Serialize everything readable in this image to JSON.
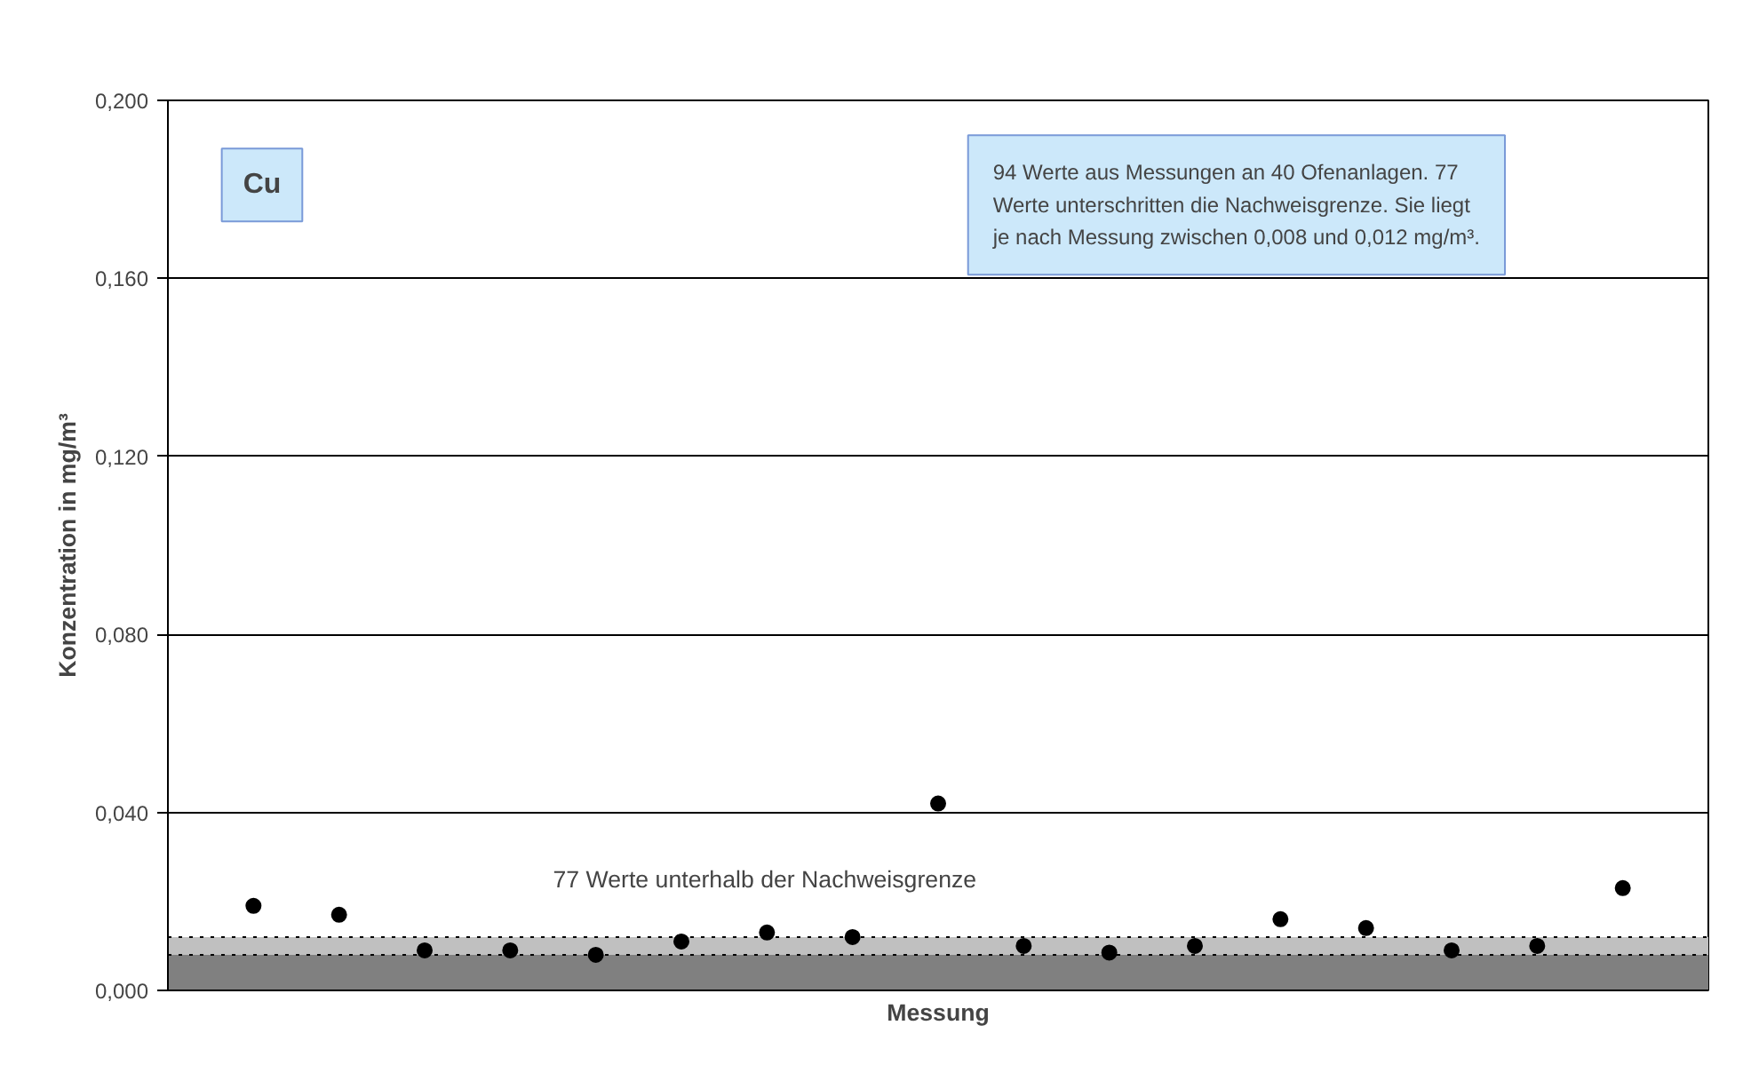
{
  "chart_data": {
    "type": "scatter",
    "xlabel": "Messung",
    "ylabel": "Konzentration in mg/m³",
    "categories": [
      null,
      null,
      null,
      null,
      null,
      null,
      null,
      null,
      null,
      null,
      null,
      null,
      null,
      null,
      null,
      null,
      null
    ],
    "series": [
      {
        "color": "#000000",
        "values": [
          0.019,
          0.017,
          0.009,
          0.009,
          0.008,
          0.011,
          0.013,
          0.012,
          0.042,
          0.01,
          0.0085,
          0.01,
          0.016,
          0.014,
          0.009,
          0.01,
          0.023
        ]
      }
    ],
    "marker": "circle",
    "ylim": [
      0,
      0.2
    ],
    "yticks": [
      {
        "value": 0,
        "label": "0,000"
      },
      {
        "value": 0.04,
        "label": "0,040"
      },
      {
        "value": 0.08,
        "label": "0,080"
      },
      {
        "value": 0.12,
        "label": "0,120"
      },
      {
        "value": 0.16,
        "label": "0,160"
      },
      {
        "value": 0.2,
        "label": "0,200"
      }
    ],
    "grid": "y",
    "tick_labels": "y",
    "bands": [
      {
        "axis": "y",
        "from": 0,
        "to": 0.008,
        "color": "#808080"
      },
      {
        "axis": "y",
        "from": 0.008,
        "to": 0.012,
        "color": "#c0c0c0",
        "label": "77 Werte unterhalb der Nachweisgrenze"
      }
    ],
    "ref_lines": [
      {
        "axis": "y",
        "value": 0.008,
        "line_style": "dotted",
        "color": "#000000"
      },
      {
        "axis": "y",
        "value": 0.012,
        "line_style": "dotted",
        "color": "#000000"
      }
    ],
    "annotations": [
      "Cu",
      "94 Werte aus Messungen an 40 Ofenanlagen. 77\nWerte unterschritten die Nachweisgrenze. Sie liegt\nje nach Messung zwischen 0,008 und 0,012 mg/m³."
    ]
  }
}
